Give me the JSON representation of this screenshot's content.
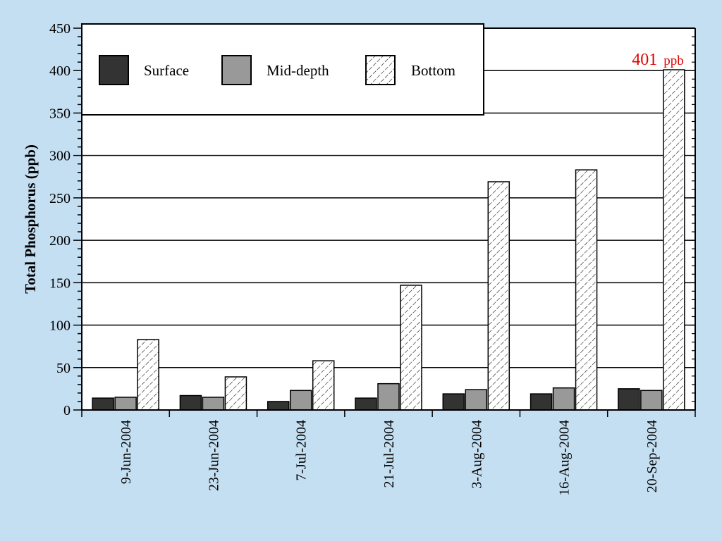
{
  "chart_data": {
    "type": "bar",
    "ylabel": "Total Phosphorus (ppb)",
    "xlabel": "",
    "ylim": [
      0,
      450
    ],
    "yticks": [
      0,
      50,
      100,
      150,
      200,
      250,
      300,
      350,
      400,
      450
    ],
    "grid": "horizontal",
    "legend_position": "top-left",
    "categories": [
      "9-Jun-2004",
      "23-Jun-2004",
      "7-Jul-2004",
      "21-Jul-2004",
      "3-Aug-2004",
      "16-Aug-2004",
      "20-Sep-2004"
    ],
    "series": [
      {
        "name": "Surface",
        "color": "#333333",
        "pattern": "solid",
        "values": [
          14,
          17,
          10,
          14,
          19,
          19,
          25
        ]
      },
      {
        "name": "Mid-depth",
        "color": "#999999",
        "pattern": "solid",
        "values": [
          15,
          15,
          23,
          31,
          24,
          26,
          23
        ]
      },
      {
        "name": "Bottom",
        "color": "#ffffff",
        "pattern": "hatch",
        "values": [
          83,
          39,
          58,
          147,
          269,
          283,
          401
        ]
      }
    ],
    "annotation": {
      "number": "401",
      "unit": "ppb",
      "color": "#e00000"
    }
  }
}
